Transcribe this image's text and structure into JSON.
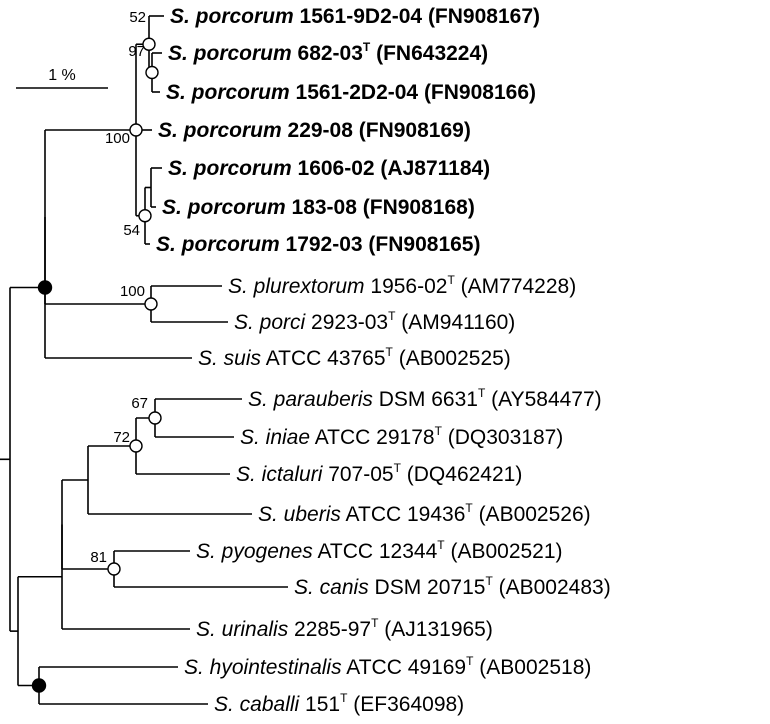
{
  "scale_bar": {
    "label": "1 %"
  },
  "taxa": [
    {
      "id": "t1",
      "genus": "S.",
      "species": "porcorum",
      "strain": "1561-9D2-04",
      "type_strain": false,
      "accession": "(FN908167)",
      "bold": true
    },
    {
      "id": "t2",
      "genus": "S.",
      "species": "porcorum",
      "strain": "682-03",
      "type_strain": true,
      "accession": "(FN643224)",
      "bold": true
    },
    {
      "id": "t3",
      "genus": "S.",
      "species": "porcorum",
      "strain": "1561-2D2-04",
      "type_strain": false,
      "accession": "(FN908166)",
      "bold": true
    },
    {
      "id": "t4",
      "genus": "S.",
      "species": "porcorum",
      "strain": "229-08",
      "type_strain": false,
      "accession": "(FN908169)",
      "bold": true
    },
    {
      "id": "t5",
      "genus": "S.",
      "species": "porcorum",
      "strain": "1606-02",
      "type_strain": false,
      "accession": "(AJ871184)",
      "bold": true
    },
    {
      "id": "t6",
      "genus": "S.",
      "species": "porcorum",
      "strain": "183-08",
      "type_strain": false,
      "accession": "(FN908168)",
      "bold": true
    },
    {
      "id": "t7",
      "genus": "S.",
      "species": "porcorum",
      "strain": "1792-03",
      "type_strain": false,
      "accession": "(FN908165)",
      "bold": true
    },
    {
      "id": "t8",
      "genus": "S.",
      "species": "plurextorum",
      "strain": "1956-02",
      "type_strain": true,
      "accession": "(AM774228)",
      "bold": false
    },
    {
      "id": "t9",
      "genus": "S.",
      "species": "porci",
      "strain": "2923-03",
      "type_strain": true,
      "accession": "(AM941160)",
      "bold": false
    },
    {
      "id": "t10",
      "genus": "S.",
      "species": "suis",
      "strain": "ATCC 43765",
      "type_strain": true,
      "accession": "(AB002525)",
      "bold": false
    },
    {
      "id": "t11",
      "genus": "S.",
      "species": "parauberis",
      "strain": "DSM 6631",
      "type_strain": true,
      "accession": "(AY584477)",
      "bold": false
    },
    {
      "id": "t12",
      "genus": "S.",
      "species": "iniae",
      "strain": "ATCC 29178",
      "type_strain": true,
      "accession": "(DQ303187)",
      "bold": false
    },
    {
      "id": "t13",
      "genus": "S.",
      "species": "ictaluri",
      "strain": "707-05",
      "type_strain": true,
      "accession": "(DQ462421)",
      "bold": false
    },
    {
      "id": "t14",
      "genus": "S.",
      "species": "uberis",
      "strain": "ATCC 19436",
      "type_strain": true,
      "accession": "(AB002526)",
      "bold": false
    },
    {
      "id": "t15",
      "genus": "S.",
      "species": "pyogenes",
      "strain": "ATCC 12344",
      "type_strain": true,
      "accession": "(AB002521)",
      "bold": false
    },
    {
      "id": "t16",
      "genus": "S.",
      "species": "canis",
      "strain": "DSM 20715",
      "type_strain": true,
      "accession": "(AB002483)",
      "bold": false
    },
    {
      "id": "t17",
      "genus": "S.",
      "species": "urinalis",
      "strain": "2285-97",
      "type_strain": true,
      "accession": "(AJ131965)",
      "bold": false
    },
    {
      "id": "t18",
      "genus": "S.",
      "species": "hyointestinalis",
      "strain": "ATCC 49169",
      "type_strain": true,
      "accession": "(AB002518)",
      "bold": false
    },
    {
      "id": "t19",
      "genus": "S.",
      "species": "caballi",
      "strain": "151",
      "type_strain": true,
      "accession": "(EF364098)",
      "bold": false
    }
  ],
  "type_strain_mark": "T",
  "bootstrap_values": {
    "n_t1_rest": "52",
    "n_t2_t3": "97",
    "n_porcorum": "100",
    "n_t6_t7": "54",
    "n_plur_porci": "100",
    "n_par_iniae": "67",
    "n_par_ict": "72",
    "n_pyo_canis": "81"
  },
  "node_markers": {
    "n_t1_rest": "open",
    "n_t2_t3": "open",
    "n_porcorum": "open",
    "n_t6_t7": "open",
    "n_plur_porci": "open",
    "n_par_iniae": "open",
    "n_par_ict": "open",
    "n_pyo_canis": "open",
    "n_por_plur_suis": "filled",
    "n_hyo_cab": "filled"
  }
}
